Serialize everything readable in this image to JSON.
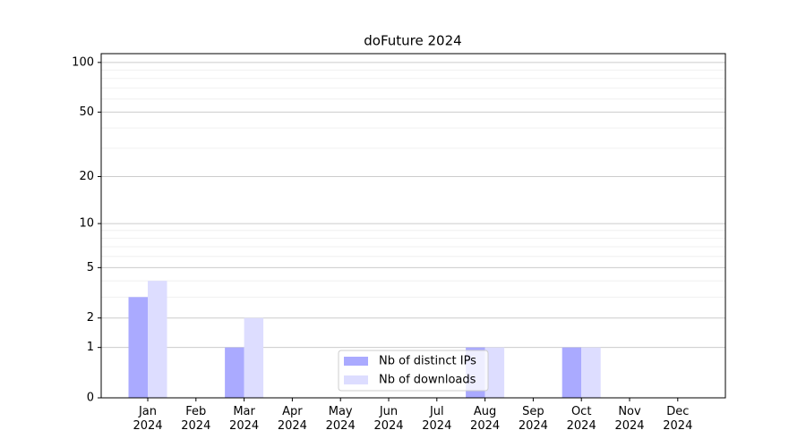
{
  "chart_data": {
    "type": "bar",
    "title": "doFuture 2024",
    "categories": [
      "Jan\n2024",
      "Feb\n2024",
      "Mar\n2024",
      "Apr\n2024",
      "May\n2024",
      "Jun\n2024",
      "Jul\n2024",
      "Aug\n2024",
      "Sep\n2024",
      "Oct\n2024",
      "Nov\n2024",
      "Dec\n2024"
    ],
    "series": [
      {
        "name": "Nb of distinct IPs",
        "color": "#aaaaff",
        "values": [
          3,
          0,
          1,
          0,
          0,
          0,
          0,
          1,
          0,
          1,
          0,
          0
        ]
      },
      {
        "name": "Nb of downloads",
        "color": "#ddddff",
        "values": [
          4,
          0,
          2,
          0,
          0,
          0,
          0,
          1,
          0,
          1,
          0,
          0
        ]
      }
    ],
    "yscale": "log1p",
    "ylim": [
      0,
      113
    ],
    "yticks": [
      0,
      1,
      2,
      5,
      10,
      20,
      50,
      100
    ],
    "minor_yticks": [
      3,
      4,
      6,
      7,
      8,
      9,
      30,
      40,
      60,
      70,
      80,
      90
    ],
    "grid": true,
    "legend": "lower center"
  }
}
